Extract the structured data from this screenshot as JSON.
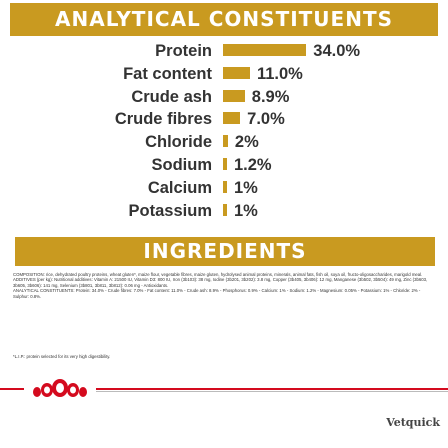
{
  "analytical": {
    "title": "ANALYTICAL CONSTITUENTS",
    "items": [
      {
        "label": "Protein",
        "value": "34.0%",
        "level": 34.0
      },
      {
        "label": "Fat content",
        "value": "11.0%",
        "level": 11.0
      },
      {
        "label": "Crude ash",
        "value": "8.9%",
        "level": 8.9
      },
      {
        "label": "Crude fibres",
        "value": "7.0%",
        "level": 7.0
      },
      {
        "label": "Chloride",
        "value": "2%",
        "level": 2
      },
      {
        "label": "Sodium",
        "value": "1.2%",
        "level": 1.2
      },
      {
        "label": "Calcium",
        "value": "1%",
        "level": 1
      },
      {
        "label": "Potassium",
        "value": "1%",
        "level": 1
      }
    ],
    "accent_color": "#c99a20"
  },
  "ingredients": {
    "title": "INGREDIENTS",
    "composition": "COMPOSITION: rice, dehydrated poultry proteins, wheat gluten*, maize flour, vegetable fibres, maize gluten, hydrolysed animal proteins, minerals, animal fats, fish oil, soya oil, fructo-oligosaccharides, marigold meal.",
    "additives": "ADDITIVES (per kg): Nutritional additives: Vitamin A: 21500 IU, Vitamin D3: 800 IU, Iron (3b103): 38 mg, Iodine (3b201, 3b202): 3.8 mg, Copper (3b405, 3b406): 12 mg, Manganese (3b502, 3b504): 49 mg, Zinc (3b603, 3b605, 3b606): 141 mg, Selenium (3b801, 3b811, 3b812): 0.06 mg - Antioxidants.",
    "analytical": "ANALYTICAL CONSTITUENTS: Protein: 34.0% - Crude fibres: 7.0% - Fat content: 11.0% - Crude ash: 8.9% - Phosphorus: 0.9% - Calcium: 1% - Sodium: 1.2% - Magnesium: 0.05% - Potassium: 1% - Chloride: 2% - Sulphur: 0.8%.",
    "lip_note": "*L.I.P.: protein selected for its very high digestibility."
  },
  "footer": {
    "brand": "Vetquick",
    "brand_color": "#d40a1e"
  }
}
